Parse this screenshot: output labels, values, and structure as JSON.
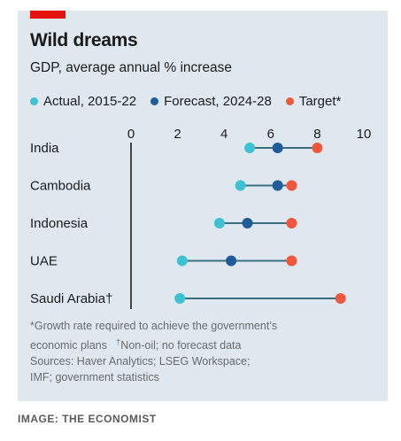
{
  "title": "Wild dreams",
  "subtitle": "GDP, average annual % increase",
  "legend": [
    {
      "label": "Actual, 2015-22",
      "color": "#3ec1d3"
    },
    {
      "label": "Forecast, 2024-28",
      "color": "#1f5c99"
    },
    {
      "label": "Target*",
      "color": "#f0573c"
    }
  ],
  "notes": {
    "line1": "*Growth rate required to achieve the government’s",
    "line2a": "economic plans",
    "line2_dagger": "†",
    "line2b": "Non-oil; no forecast data",
    "line3": "Sources: Haver Analytics; LSEG Workspace;",
    "line4": "IMF; government statistics"
  },
  "credit": "IMAGE: THE ECONOMIST",
  "chart_data": {
    "type": "dot-plot",
    "title": "Wild dreams",
    "subtitle": "GDP, average annual % increase",
    "xlim": [
      0,
      10
    ],
    "xticks": [
      "0",
      "2",
      "4",
      "6",
      "8",
      "10"
    ],
    "categories": [
      "India",
      "Cambodia",
      "Indonesia",
      "UAE",
      "Saudi Arabia†"
    ],
    "series": [
      {
        "name": "Actual, 2015-22",
        "color": "#3ec1d3",
        "values": [
          5.1,
          4.7,
          3.8,
          2.2,
          2.1
        ]
      },
      {
        "name": "Forecast, 2024-28",
        "color": "#1f5c99",
        "values": [
          6.3,
          6.3,
          5.0,
          4.3,
          null
        ]
      },
      {
        "name": "Target*",
        "color": "#f0573c",
        "values": [
          8.0,
          6.9,
          6.9,
          6.9,
          9.0
        ]
      }
    ]
  }
}
